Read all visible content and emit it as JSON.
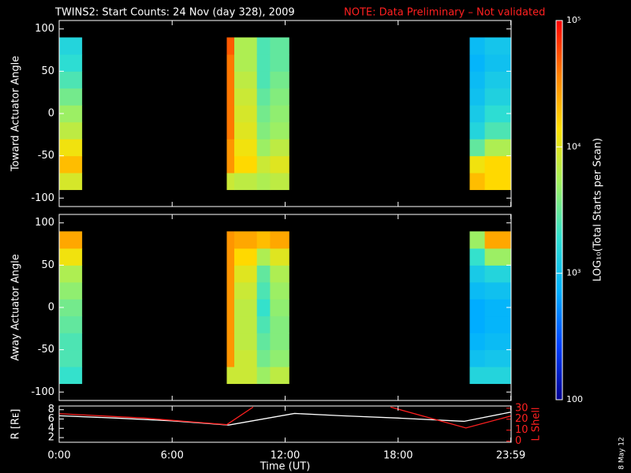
{
  "title": "TWINS2: Start Counts: 24 Nov (day 328), 2009",
  "note": "NOTE: Data Preliminary – Not validated",
  "date_stamp": "8 May 12",
  "colorbar": {
    "label": "LOG₁₀(Total Starts per Scan)",
    "zlim": [
      100,
      100000
    ],
    "log": true,
    "ticks": [
      {
        "value": 100000,
        "label": "10⁵"
      },
      {
        "value": 10000,
        "label": "10⁴"
      },
      {
        "value": 1000,
        "label": "10³"
      },
      100
    ],
    "colormap": [
      "#000090",
      "#0040ff",
      "#00b0ff",
      "#30e0d0",
      "#a0f060",
      "#ffe000",
      "#ff8000",
      "#ff0000"
    ]
  },
  "chart_data": [
    {
      "type": "heatmap",
      "ylabel": "Toward Actuator Angle",
      "xlim": [
        0,
        24
      ],
      "ylim": [
        -110,
        110
      ],
      "yticks": [
        -100,
        -50,
        0,
        50,
        100
      ],
      "angle_bins": [
        -90,
        -70,
        -50,
        -30,
        -10,
        10,
        30,
        50,
        70,
        90
      ],
      "columns": [
        {
          "x0": 0,
          "x1": 1.2,
          "values": [
            9000,
            20000,
            12000,
            7000,
            5000,
            3500,
            2500,
            1800,
            1500
          ]
        },
        {
          "x0": 8.9,
          "x1": 9.3,
          "values": [
            8000,
            30000,
            30000,
            40000,
            40000,
            40000,
            40000,
            40000,
            50000
          ]
        },
        {
          "x0": 9.3,
          "x1": 10.5,
          "values": [
            7000,
            15000,
            12000,
            10000,
            9000,
            8000,
            7000,
            6000,
            6000
          ]
        },
        {
          "x0": 10.5,
          "x1": 11.2,
          "values": [
            6000,
            8000,
            5000,
            4000,
            3500,
            3000,
            2500,
            2500,
            2500
          ]
        },
        {
          "x0": 11.2,
          "x1": 12.2,
          "values": [
            7000,
            10000,
            7000,
            5000,
            4500,
            4000,
            3500,
            3000,
            3000
          ]
        },
        {
          "x0": 21.8,
          "x1": 22.6,
          "values": [
            20000,
            12000,
            3000,
            1500,
            1200,
            1000,
            900,
            800,
            900
          ]
        },
        {
          "x0": 22.6,
          "x1": 24,
          "values": [
            15000,
            15000,
            6000,
            2500,
            1800,
            1400,
            1200,
            1000,
            1100
          ]
        }
      ]
    },
    {
      "type": "heatmap",
      "ylabel": "Away Actuator Angle",
      "xlim": [
        0,
        24
      ],
      "ylim": [
        -110,
        110
      ],
      "yticks": [
        -100,
        -50,
        0,
        50,
        100
      ],
      "angle_bins": [
        -90,
        -70,
        -50,
        -30,
        -10,
        10,
        30,
        50,
        70,
        90
      ],
      "columns": [
        {
          "x0": 0,
          "x1": 1.2,
          "values": [
            2000,
            2500,
            2500,
            3000,
            3500,
            4500,
            6000,
            12000,
            25000
          ]
        },
        {
          "x0": 8.9,
          "x1": 9.3,
          "values": [
            8000,
            30000,
            30000,
            30000,
            30000,
            30000,
            30000,
            30000,
            30000
          ]
        },
        {
          "x0": 9.3,
          "x1": 10.5,
          "values": [
            8000,
            8000,
            7000,
            7000,
            7000,
            8000,
            10000,
            15000,
            25000
          ]
        },
        {
          "x0": 10.5,
          "x1": 11.2,
          "values": [
            5000,
            3500,
            3000,
            2500,
            2000,
            2500,
            3000,
            6000,
            20000
          ]
        },
        {
          "x0": 11.2,
          "x1": 12.2,
          "values": [
            7000,
            4500,
            4000,
            4000,
            4500,
            5000,
            6000,
            10000,
            25000
          ]
        },
        {
          "x0": 21.8,
          "x1": 22.6,
          "values": [
            1500,
            1000,
            800,
            700,
            700,
            900,
            1200,
            2000,
            5000
          ]
        },
        {
          "x0": 22.6,
          "x1": 24,
          "values": [
            1500,
            1100,
            900,
            800,
            800,
            1000,
            1500,
            5000,
            25000
          ]
        }
      ]
    },
    {
      "type": "line",
      "ylabel": "R [Rᴇ]",
      "y2label": "L Shell",
      "xlabel": "Time (UT)",
      "xlim": [
        0,
        24
      ],
      "xticks": [
        {
          "value": 0,
          "label": "0:00"
        },
        {
          "value": 6,
          "label": "6:00"
        },
        {
          "value": 12,
          "label": "12:00"
        },
        {
          "value": 18,
          "label": "18:00"
        },
        {
          "value": 23.983,
          "label": "23:59"
        }
      ],
      "ylim": [
        1,
        8.8
      ],
      "yticks": [
        2,
        4,
        6,
        8
      ],
      "y2lim": [
        -1,
        32
      ],
      "y2ticks": [
        0,
        10,
        20,
        30
      ],
      "series": [
        {
          "name": "R",
          "color": "#ffffff",
          "x": [
            0,
            3,
            6,
            9,
            12.5,
            15,
            18,
            21.5,
            24
          ],
          "values": [
            6.7,
            6.2,
            5.6,
            4.7,
            7.2,
            6.7,
            6.2,
            5.5,
            7.5
          ]
        },
        {
          "name": "L Shell",
          "color": "#ff2020",
          "axis": "y2",
          "x": [
            0,
            4.5,
            8.9,
            10.3,
            14,
            17.6,
            21.6,
            24
          ],
          "values": [
            25,
            21,
            15,
            31,
            null,
            31,
            12,
            23
          ]
        }
      ]
    }
  ]
}
